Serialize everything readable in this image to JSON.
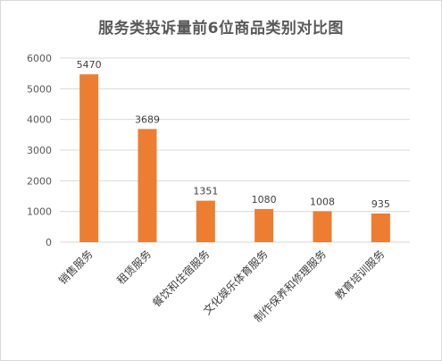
{
  "chart_data": {
    "type": "bar",
    "title": "服务类投诉量前6位商品类别对比图",
    "categories": [
      "销售服务",
      "租赁服务",
      "餐饮和住宿服务",
      "文化娱乐体育服务",
      "制作保养和修理服务",
      "教育培训服务"
    ],
    "values": [
      5470,
      3689,
      1351,
      1080,
      1008,
      935
    ],
    "data_labels": [
      "5470",
      "3689",
      "1351",
      "1080",
      "1008",
      "935"
    ],
    "xlabel": "",
    "ylabel": "",
    "ylim": [
      0,
      6000
    ],
    "yticks": [
      0,
      1000,
      2000,
      3000,
      4000,
      5000,
      6000
    ],
    "grid": true,
    "legend": "none",
    "colors": {
      "bar": "#ED7D31",
      "grid": "#d9d9d9",
      "text": "#595959"
    }
  }
}
